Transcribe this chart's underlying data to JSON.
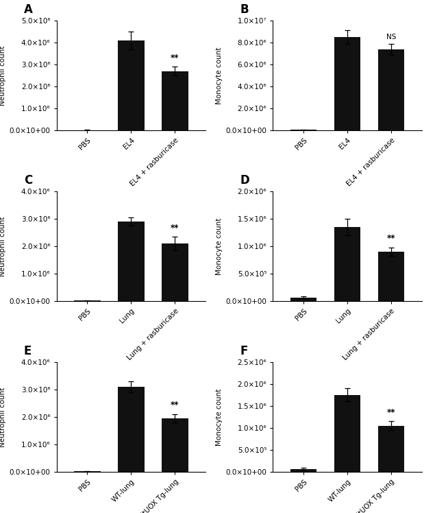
{
  "panels": [
    {
      "label": "A",
      "ylabel": "Neutrophil count",
      "categories": [
        "PBS",
        "EL4",
        "EL4 + rasburicase"
      ],
      "values": [
        30000,
        4100000,
        2700000
      ],
      "errors": [
        10000,
        400000,
        200000
      ],
      "ylim": [
        0,
        5000000.0
      ],
      "yticks": [
        0,
        1000000.0,
        2000000.0,
        3000000.0,
        4000000.0,
        5000000.0
      ],
      "ytick_labels": [
        "0.0×10+00",
        "1.0×10⁶",
        "2.0×10⁶",
        "3.0×10⁶",
        "4.0×10⁶",
        "5.0×10⁶"
      ],
      "sig_positions": [
        2
      ],
      "ns_positions": []
    },
    {
      "label": "B",
      "ylabel": "Monocyte count",
      "categories": [
        "PBS",
        "EL4",
        "EL4 + rasburicase"
      ],
      "values": [
        80000,
        8500000,
        7400000
      ],
      "errors": [
        20000,
        600000,
        500000
      ],
      "ylim": [
        0,
        10000000.0
      ],
      "yticks": [
        0,
        2000000.0,
        4000000.0,
        6000000.0,
        8000000.0,
        10000000.0
      ],
      "ytick_labels": [
        "0.0×10+00",
        "2.0×10⁶",
        "4.0×10⁶",
        "6.0×10⁶",
        "8.0×10⁶",
        "1.0×10⁷"
      ],
      "sig_positions": [],
      "ns_positions": [
        2
      ]
    },
    {
      "label": "C",
      "ylabel": "Neutrophil count",
      "categories": [
        "PBS",
        "Lung",
        "Lung + rasburicase"
      ],
      "values": [
        30000,
        2900000,
        2100000
      ],
      "errors": [
        10000,
        150000,
        250000
      ],
      "ylim": [
        0,
        4000000.0
      ],
      "yticks": [
        0,
        1000000.0,
        2000000.0,
        3000000.0,
        4000000.0
      ],
      "ytick_labels": [
        "0.0×10+00",
        "1.0×10⁶",
        "2.0×10⁶",
        "3.0×10⁶",
        "4.0×10⁶"
      ],
      "sig_positions": [
        2
      ],
      "ns_positions": []
    },
    {
      "label": "D",
      "ylabel": "Monocyte count",
      "categories": [
        "PBS",
        "Lung",
        "Lung + rasburicase"
      ],
      "values": [
        70000,
        1350000,
        900000
      ],
      "errors": [
        20000,
        150000,
        80000
      ],
      "ylim": [
        0,
        2000000.0
      ],
      "yticks": [
        0,
        500000.0,
        1000000.0,
        1500000.0,
        2000000.0
      ],
      "ytick_labels": [
        "0.0×10+00",
        "5.0×10⁵",
        "1.0×10⁶",
        "1.5×10⁶",
        "2.0×10⁶"
      ],
      "sig_positions": [
        2
      ],
      "ns_positions": []
    },
    {
      "label": "E",
      "ylabel": "Neutrophil count",
      "categories": [
        "PBS",
        "WT-lung",
        "initUOX Tg-lung"
      ],
      "values": [
        30000,
        3100000,
        1950000
      ],
      "errors": [
        10000,
        200000,
        150000
      ],
      "ylim": [
        0,
        4000000.0
      ],
      "yticks": [
        0,
        1000000.0,
        2000000.0,
        3000000.0,
        4000000.0
      ],
      "ytick_labels": [
        "0.0×10+00",
        "1.0×10⁶",
        "2.0×10⁶",
        "3.0×10⁶",
        "4.0×10⁶"
      ],
      "sig_positions": [
        2
      ],
      "ns_positions": []
    },
    {
      "label": "F",
      "ylabel": "Monocyte count",
      "categories": [
        "PBS",
        "WT-lung",
        "initUOX Tg-lung"
      ],
      "values": [
        70000,
        1750000,
        1050000
      ],
      "errors": [
        20000,
        150000,
        100000
      ],
      "ylim": [
        0,
        2500000.0
      ],
      "yticks": [
        0,
        500000.0,
        1000000.0,
        1500000.0,
        2000000.0,
        2500000.0
      ],
      "ytick_labels": [
        "0.0×10+00",
        "5.0×10⁵",
        "1.0×10⁶",
        "1.5×10⁶",
        "2.0×10⁶",
        "2.5×10⁶"
      ],
      "sig_positions": [
        2
      ],
      "ns_positions": []
    }
  ],
  "bar_color": "#111111",
  "bar_width": 0.6,
  "capsize": 3,
  "fontsize": 7.5,
  "tick_fontsize": 7.5,
  "panel_label_fontsize": 12
}
